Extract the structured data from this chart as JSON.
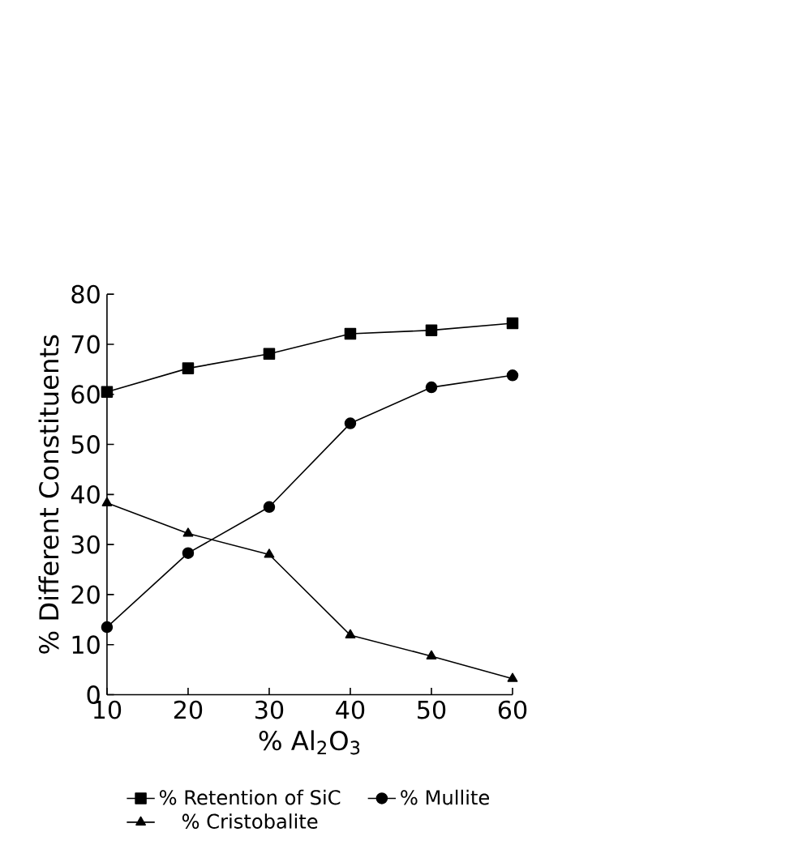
{
  "chart_data": {
    "type": "line",
    "xlabel": "% Al$_{2}$O$_{3}$",
    "ylabel": "% Different Constituents",
    "x": [
      10,
      20,
      30,
      40,
      50,
      60
    ],
    "series": [
      {
        "name": "% Retention of SiC",
        "color": "#000000",
        "marker": "square",
        "values": [
          60.5,
          65.2,
          68.1,
          72.1,
          72.8,
          74.2
        ]
      },
      {
        "name": "% Mullite",
        "color": "#000000",
        "marker": "circle",
        "values": [
          13.5,
          28.3,
          37.5,
          54.2,
          61.4,
          63.8
        ]
      },
      {
        "name": "% Cristobalite",
        "color": "#000000",
        "marker": "triangle",
        "values": [
          38.3,
          32.2,
          28.0,
          11.9,
          7.7,
          3.2
        ]
      }
    ],
    "xlim": [
      10,
      60
    ],
    "ylim": [
      0,
      80
    ],
    "xticks": [
      10,
      20,
      30,
      40,
      50,
      60
    ],
    "yticks": [
      0,
      10,
      20,
      30,
      40,
      50,
      60,
      70,
      80
    ],
    "legend": "bottom",
    "grid": false,
    "line_style": "solid"
  }
}
